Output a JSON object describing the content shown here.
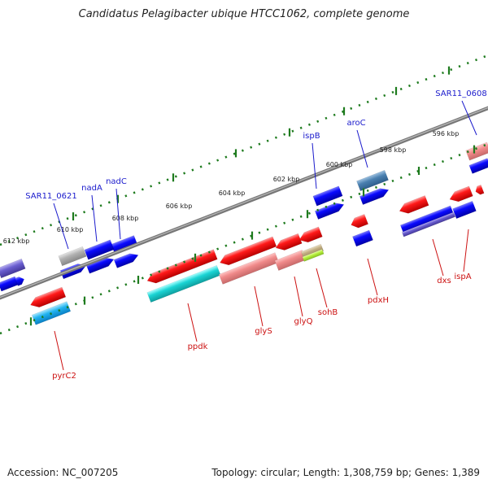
{
  "title": "Candidatus Pelagibacter ubique HTCC1062, complete genome",
  "footer": {
    "accession": "Accession: NC_007205",
    "topology": "Topology: circular; Length: 1,308,759 bp; Genes: 1,389"
  },
  "ticks": [
    "596 kbp",
    "598 kbp",
    "600 kbp",
    "602 kbp",
    "604 kbp",
    "606 kbp",
    "608 kbp",
    "610 kbp",
    "612 kbp"
  ],
  "labels_blue": [
    "SAR11_0608",
    "aroC",
    "ispB",
    "nadC",
    "nadA",
    "SAR11_0621"
  ],
  "labels_red": [
    "ispA",
    "dxs",
    "pdxH",
    "sohB",
    "glyQ",
    "glyS",
    "ppdk",
    "pyrC2"
  ],
  "colors": {
    "blue_label": "#1a1acc",
    "red_label": "#cc1111",
    "backbone": "#777777",
    "tick_green": "#1e7b1e"
  }
}
